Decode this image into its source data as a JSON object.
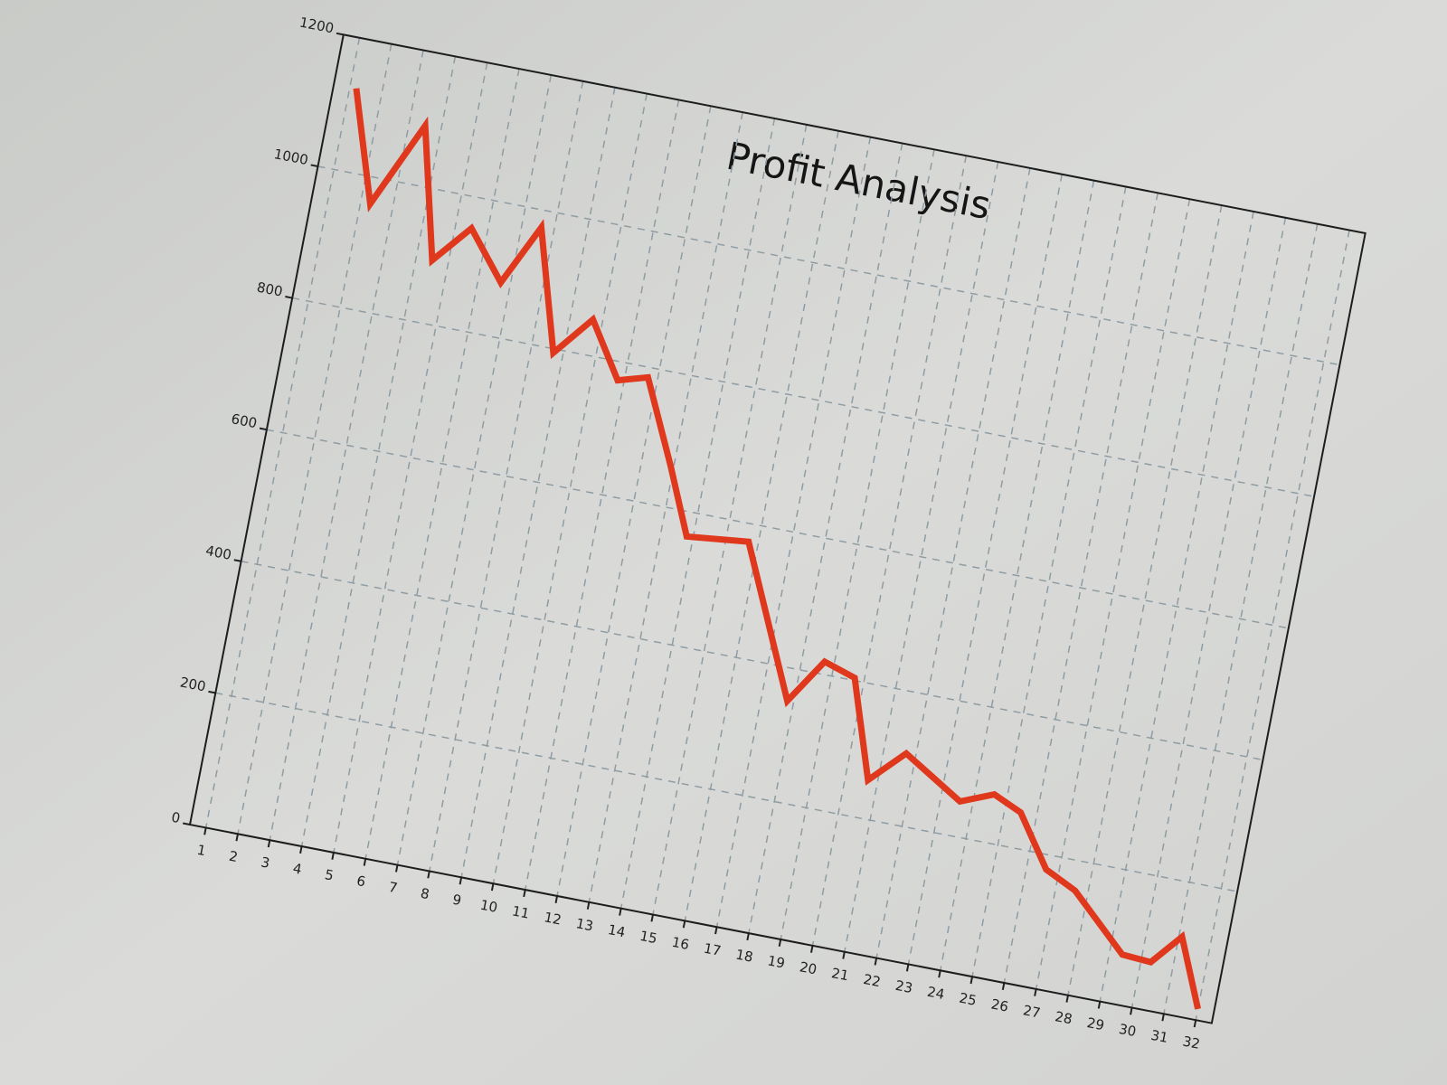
{
  "chart_data": {
    "type": "line",
    "title": "Profit Analysis",
    "x": [
      1.2,
      2.3,
      3.5,
      4.5,
      5.5,
      6.7,
      7.6,
      8.7,
      9.7,
      10.8,
      11.7,
      12.9,
      13.8,
      15.7,
      17.8,
      18.7,
      19.7,
      20.7,
      21.7,
      23.6,
      24.6,
      25.5,
      26.6,
      27.6,
      29.4,
      30.3,
      31.1,
      32
    ],
    "values": [
      1125,
      960,
      1090,
      895,
      953,
      882,
      974,
      794,
      854,
      772,
      785,
      662,
      563,
      573,
      351,
      419,
      404,
      258,
      308,
      253,
      273,
      254,
      178,
      155,
      75,
      72,
      118,
      17
    ],
    "color": "#e0381c",
    "xlim": [
      0.5,
      32.5
    ],
    "xticks": [
      1,
      2,
      3,
      4,
      5,
      6,
      7,
      8,
      9,
      10,
      11,
      12,
      13,
      14,
      15,
      16,
      17,
      18,
      19,
      20,
      21,
      22,
      23,
      24,
      25,
      26,
      27,
      28,
      29,
      30,
      31,
      32
    ],
    "ylim": [
      0,
      1200
    ],
    "yticks": [
      0,
      200,
      400,
      600,
      800,
      1000,
      1200
    ],
    "grid": true
  }
}
